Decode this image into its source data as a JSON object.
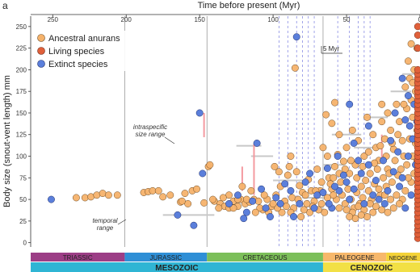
{
  "panel_label": "a",
  "colors": {
    "ancestral": "#f5b26b",
    "living": "#e0603a",
    "extinct": "#5b7fdb",
    "range_pink": "#f49aa0",
    "range_grey": "#c8c8c8",
    "triassic": "#9c3e86",
    "jurassic": "#2f8fd6",
    "cretaceous": "#7cbf5a",
    "paleogene": "#f7b86b",
    "neogene": "#f4d338",
    "mesozoic": "#2fb5d4",
    "cenozoic": "#f2e045"
  },
  "annotations": {
    "intraspecific": "intraspecific",
    "size_range": "size range",
    "temporal": "temporal",
    "range": "range",
    "five_myr": "5 Myr"
  },
  "chart_data": {
    "type": "scatter",
    "xlabel": "Time before present (Myr)",
    "ylabel": "Body size (snout-vent length) mm",
    "xlim": [
      265,
      0
    ],
    "ylim": [
      -5,
      262
    ],
    "xticks": [
      250,
      200,
      150,
      100,
      50,
      0
    ],
    "yticks": [
      0,
      25,
      50,
      75,
      100,
      125,
      150,
      175,
      200,
      225,
      250
    ],
    "legend_position": "top-left",
    "legend": [
      {
        "key": "ancestral",
        "label": "Ancestral anurans"
      },
      {
        "key": "living",
        "label": "Living species"
      },
      {
        "key": "extinct",
        "label": "Extinct species"
      }
    ],
    "period_boundaries": [
      201,
      145,
      66
    ],
    "dashed_lines": [
      96,
      90,
      84,
      80,
      76,
      72,
      56,
      48,
      42,
      38,
      34
    ],
    "periods": [
      {
        "name": "TRIASSIC",
        "start": 265,
        "end": 201,
        "color_key": "triassic"
      },
      {
        "name": "JURASSIC",
        "start": 201,
        "end": 145,
        "color_key": "jurassic"
      },
      {
        "name": "CRETACEOUS",
        "start": 145,
        "end": 66,
        "color_key": "cretaceous"
      },
      {
        "name": "PALEOGENE",
        "start": 66,
        "end": 23,
        "color_key": "paleogene"
      },
      {
        "name": "NEOGENE",
        "start": 23,
        "end": 0,
        "color_key": "neogene"
      }
    ],
    "eras": [
      {
        "name": "MESOZOIC",
        "start": 265,
        "end": 66,
        "color_key": "mesozoic"
      },
      {
        "name": "CENOZOIC",
        "start": 66,
        "end": 0,
        "color_key": "cenozoic"
      }
    ],
    "pink_ranges": [
      {
        "x": 147,
        "y0": 122,
        "y1": 150
      },
      {
        "x": 113,
        "y0": 55,
        "y1": 114
      },
      {
        "x": 121,
        "y0": 60,
        "y1": 88
      },
      {
        "x": 26,
        "y0": 98,
        "y1": 125
      }
    ],
    "grey_ranges": [
      {
        "x0": 175,
        "x1": 140,
        "y": 32
      },
      {
        "x0": 125,
        "x1": 108,
        "y": 112
      },
      {
        "x0": 115,
        "x1": 100,
        "y": 100
      },
      {
        "x0": 100,
        "x1": 80,
        "y": 72
      },
      {
        "x0": 80,
        "x1": 65,
        "y": 52
      },
      {
        "x0": 66,
        "x1": 52,
        "y": 90
      },
      {
        "x0": 60,
        "x1": 40,
        "y": 125
      },
      {
        "x0": 38,
        "x1": 22,
        "y": 145
      },
      {
        "x0": 20,
        "x1": 6,
        "y": 175
      },
      {
        "x0": 12,
        "x1": 2,
        "y": 195
      },
      {
        "x0": 45,
        "x1": 30,
        "y": 110
      }
    ],
    "extinct_points": [
      [
        251,
        50
      ],
      [
        150,
        150
      ],
      [
        165,
        32
      ],
      [
        154,
        20
      ],
      [
        148,
        80
      ],
      [
        111,
        115
      ],
      [
        84,
        238
      ],
      [
        48,
        160
      ],
      [
        45,
        115
      ],
      [
        35,
        135
      ],
      [
        8,
        170
      ],
      [
        10,
        142
      ],
      [
        20,
        118
      ],
      [
        56,
        100
      ],
      [
        63,
        86
      ],
      [
        75,
        80
      ],
      [
        88,
        60
      ],
      [
        95,
        45
      ],
      [
        105,
        40
      ],
      [
        118,
        35
      ],
      [
        120,
        28
      ],
      [
        130,
        45
      ],
      [
        78,
        70
      ],
      [
        70,
        55
      ],
      [
        60,
        40
      ],
      [
        55,
        60
      ],
      [
        50,
        70
      ],
      [
        45,
        62
      ],
      [
        40,
        80
      ],
      [
        35,
        90
      ],
      [
        30,
        72
      ],
      [
        28,
        50
      ],
      [
        25,
        95
      ],
      [
        22,
        60
      ],
      [
        18,
        82
      ],
      [
        15,
        105
      ],
      [
        12,
        75
      ],
      [
        8,
        100
      ],
      [
        5,
        120
      ],
      [
        3,
        90
      ],
      [
        2,
        140
      ],
      [
        4,
        160
      ],
      [
        6,
        55
      ],
      [
        10,
        40
      ],
      [
        14,
        65
      ],
      [
        24,
        45
      ],
      [
        32,
        55
      ],
      [
        38,
        45
      ],
      [
        42,
        95
      ],
      [
        48,
        50
      ],
      [
        52,
        78
      ],
      [
        58,
        65
      ],
      [
        62,
        45
      ],
      [
        66,
        58
      ],
      [
        72,
        40
      ],
      [
        82,
        45
      ],
      [
        86,
        30
      ],
      [
        92,
        68
      ],
      [
        98,
        52
      ],
      [
        102,
        30
      ],
      [
        108,
        62
      ],
      [
        114,
        48
      ],
      [
        124,
        55
      ],
      [
        12,
        190
      ],
      [
        17,
        150
      ],
      [
        7,
        135
      ]
    ],
    "ancestral_points": [
      [
        234,
        52
      ],
      [
        228,
        52
      ],
      [
        224,
        53
      ],
      [
        220,
        55
      ],
      [
        216,
        57
      ],
      [
        212,
        55
      ],
      [
        206,
        55
      ],
      [
        188,
        58
      ],
      [
        185,
        59
      ],
      [
        182,
        60
      ],
      [
        178,
        60
      ],
      [
        175,
        53
      ],
      [
        170,
        55
      ],
      [
        163,
        47
      ],
      [
        160,
        57
      ],
      [
        158,
        45
      ],
      [
        155,
        60
      ],
      [
        152,
        62
      ],
      [
        147,
        46
      ],
      [
        144,
        88
      ],
      [
        143,
        90
      ],
      [
        140,
        48
      ],
      [
        136,
        45
      ],
      [
        133,
        42
      ],
      [
        130,
        40
      ],
      [
        127,
        48
      ],
      [
        124,
        42
      ],
      [
        122,
        50
      ],
      [
        119,
        45
      ],
      [
        116,
        47
      ],
      [
        113,
        50
      ],
      [
        110,
        48
      ],
      [
        107,
        38
      ],
      [
        104,
        50
      ],
      [
        101,
        42
      ],
      [
        98,
        55
      ],
      [
        95,
        65
      ],
      [
        92,
        48
      ],
      [
        90,
        78
      ],
      [
        89,
        88
      ],
      [
        87,
        52
      ],
      [
        85,
        202
      ],
      [
        84,
        82
      ],
      [
        82,
        66
      ],
      [
        80,
        58
      ],
      [
        78,
        55
      ],
      [
        76,
        73
      ],
      [
        74,
        60
      ],
      [
        72,
        48
      ],
      [
        70,
        85
      ],
      [
        68,
        60
      ],
      [
        66,
        110
      ],
      [
        64,
        148
      ],
      [
        62,
        75
      ],
      [
        60,
        62
      ],
      [
        58,
        88
      ],
      [
        56,
        102
      ],
      [
        55,
        125
      ],
      [
        54,
        70
      ],
      [
        52,
        94
      ],
      [
        50,
        110
      ],
      [
        48,
        80
      ],
      [
        46,
        130
      ],
      [
        44,
        90
      ],
      [
        42,
        118
      ],
      [
        40,
        65
      ],
      [
        38,
        100
      ],
      [
        36,
        145
      ],
      [
        34,
        80
      ],
      [
        32,
        125
      ],
      [
        30,
        110
      ],
      [
        28,
        95
      ],
      [
        26,
        140
      ],
      [
        24,
        120
      ],
      [
        22,
        85
      ],
      [
        20,
        130
      ],
      [
        18,
        108
      ],
      [
        16,
        160
      ],
      [
        14,
        140
      ],
      [
        12,
        118
      ],
      [
        10,
        180
      ],
      [
        9,
        155
      ],
      [
        8,
        210
      ],
      [
        7,
        190
      ],
      [
        6,
        165
      ],
      [
        5,
        145
      ],
      [
        4,
        200
      ],
      [
        3,
        175
      ],
      [
        2,
        130
      ],
      [
        1,
        155
      ],
      [
        3,
        115
      ],
      [
        5,
        100
      ],
      [
        7,
        120
      ],
      [
        9,
        90
      ],
      [
        11,
        100
      ],
      [
        13,
        85
      ],
      [
        15,
        78
      ],
      [
        17,
        95
      ],
      [
        19,
        70
      ],
      [
        21,
        80
      ],
      [
        23,
        65
      ],
      [
        25,
        75
      ],
      [
        27,
        55
      ],
      [
        29,
        85
      ],
      [
        31,
        68
      ],
      [
        33,
        50
      ],
      [
        35,
        60
      ],
      [
        37,
        72
      ],
      [
        39,
        52
      ],
      [
        41,
        45
      ],
      [
        43,
        58
      ],
      [
        45,
        40
      ],
      [
        47,
        50
      ],
      [
        49,
        62
      ],
      [
        51,
        45
      ],
      [
        53,
        55
      ],
      [
        55,
        40
      ],
      [
        57,
        50
      ],
      [
        59,
        55
      ],
      [
        61,
        68
      ],
      [
        63,
        52
      ],
      [
        65,
        35
      ],
      [
        67,
        45
      ],
      [
        69,
        38
      ],
      [
        71,
        60
      ],
      [
        73,
        42
      ],
      [
        75,
        35
      ],
      [
        77,
        45
      ],
      [
        79,
        38
      ],
      [
        81,
        30
      ],
      [
        83,
        50
      ],
      [
        86,
        40
      ],
      [
        88,
        35
      ],
      [
        91,
        42
      ],
      [
        94,
        35
      ],
      [
        97,
        40
      ],
      [
        100,
        45
      ],
      [
        103,
        35
      ],
      [
        106,
        55
      ],
      [
        109,
        40
      ],
      [
        112,
        35
      ],
      [
        115,
        60
      ],
      [
        118,
        50
      ],
      [
        121,
        65
      ],
      [
        124,
        50
      ],
      [
        127,
        40
      ],
      [
        130,
        55
      ],
      [
        134,
        52
      ],
      [
        137,
        40
      ],
      [
        141,
        50
      ],
      [
        10,
        60
      ],
      [
        12,
        50
      ],
      [
        14,
        45
      ],
      [
        16,
        55
      ],
      [
        18,
        40
      ],
      [
        20,
        50
      ],
      [
        22,
        35
      ],
      [
        24,
        55
      ],
      [
        26,
        38
      ],
      [
        28,
        62
      ],
      [
        30,
        42
      ],
      [
        32,
        35
      ],
      [
        34,
        45
      ],
      [
        36,
        30
      ],
      [
        38,
        38
      ],
      [
        40,
        32
      ],
      [
        42,
        42
      ],
      [
        44,
        28
      ],
      [
        46,
        35
      ],
      [
        48,
        30
      ],
      [
        50,
        38
      ],
      [
        4,
        80
      ],
      [
        6,
        70
      ],
      [
        8,
        75
      ],
      [
        2,
        95
      ],
      [
        1,
        110
      ],
      [
        6,
        230
      ],
      [
        2,
        225
      ],
      [
        5,
        185
      ],
      [
        11,
        160
      ],
      [
        15,
        125
      ],
      [
        19,
        115
      ],
      [
        23,
        100
      ],
      [
        27,
        112
      ],
      [
        31,
        92
      ],
      [
        35,
        105
      ],
      [
        39,
        88
      ],
      [
        43,
        75
      ],
      [
        47,
        95
      ],
      [
        51,
        85
      ],
      [
        55,
        80
      ],
      [
        59,
        75
      ],
      [
        63,
        100
      ],
      [
        67,
        70
      ],
      [
        60,
        138
      ],
      [
        58,
        162
      ],
      [
        26,
        160
      ],
      [
        22,
        150
      ],
      [
        96,
        82
      ],
      [
        99,
        88
      ],
      [
        88,
        100
      ],
      [
        162,
        48
      ]
    ],
    "living_x": 1.5,
    "living_values": [
      5,
      10,
      15,
      20,
      25,
      30,
      35,
      40,
      45,
      50,
      55,
      60,
      65,
      70,
      75,
      80,
      85,
      90,
      95,
      100,
      105,
      110,
      115,
      120,
      125,
      130,
      135,
      140,
      145,
      150,
      155,
      160,
      165,
      170,
      175,
      180,
      185,
      190,
      195,
      200,
      225,
      240,
      250
    ]
  }
}
